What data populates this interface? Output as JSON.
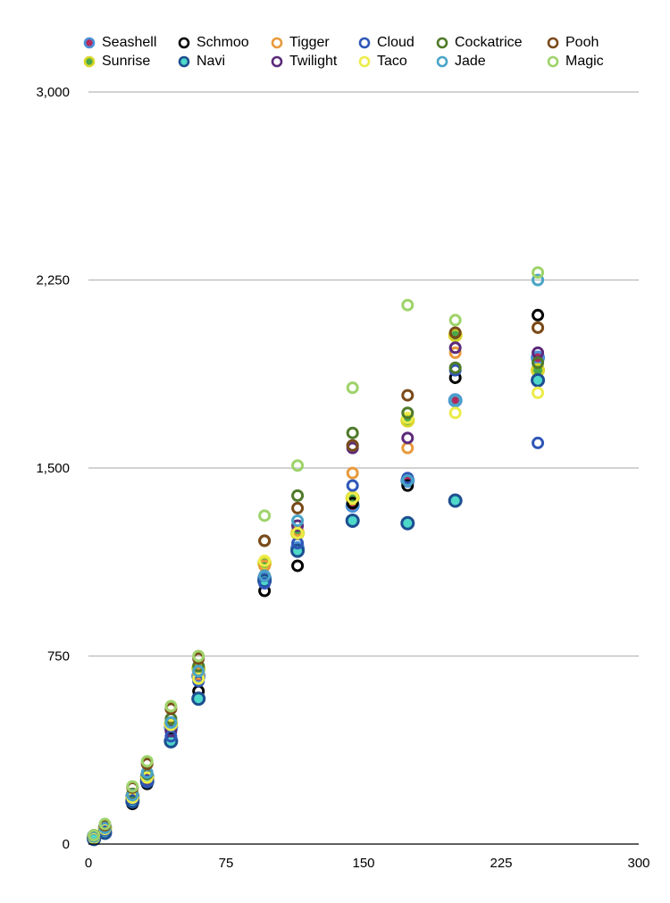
{
  "chart_data": {
    "type": "scatter",
    "title": "",
    "xlabel": "",
    "ylabel": "",
    "xlim": [
      0,
      300
    ],
    "ylim": [
      0,
      3000
    ],
    "x_ticks": [
      "0",
      "75",
      "150",
      "225",
      "300"
    ],
    "y_ticks": [
      "0",
      "750",
      "1,500",
      "2,250",
      "3,000"
    ],
    "grid": "horizontal",
    "legend_position": "top",
    "series": [
      {
        "name": "Seashell",
        "color": "#4a90d9",
        "fill": "#b22a5e",
        "filled": true,
        "points": [
          [
            3,
            30
          ],
          [
            9,
            65
          ],
          [
            24,
            190
          ],
          [
            32,
            270
          ],
          [
            45,
            465
          ],
          [
            60,
            670
          ],
          [
            96,
            1060
          ],
          [
            114,
            1180
          ],
          [
            144,
            1350
          ],
          [
            174,
            1450
          ],
          [
            200,
            1770
          ],
          [
            245,
            1940
          ]
        ]
      },
      {
        "name": "Sunrise",
        "color": "#d9d62a",
        "fill": "#4aa84a",
        "filled": true,
        "points": [
          [
            3,
            25
          ],
          [
            9,
            60
          ],
          [
            24,
            180
          ],
          [
            32,
            260
          ],
          [
            45,
            480
          ],
          [
            60,
            700
          ],
          [
            96,
            1120
          ],
          [
            114,
            1240
          ],
          [
            144,
            1380
          ],
          [
            174,
            1690
          ],
          [
            200,
            2030
          ],
          [
            245,
            1890
          ]
        ]
      },
      {
        "name": "Schmoo",
        "color": "#000000",
        "points": [
          [
            3,
            20
          ],
          [
            9,
            50
          ],
          [
            24,
            160
          ],
          [
            32,
            240
          ],
          [
            45,
            420
          ],
          [
            60,
            610
          ],
          [
            96,
            1010
          ],
          [
            114,
            1110
          ],
          [
            144,
            1360
          ],
          [
            174,
            1430
          ],
          [
            200,
            1860
          ],
          [
            245,
            2110
          ]
        ]
      },
      {
        "name": "Navi",
        "color": "#1d4f91",
        "fill": "#4ed8c9",
        "filled": true,
        "points": [
          [
            3,
            20
          ],
          [
            9,
            45
          ],
          [
            24,
            170
          ],
          [
            32,
            250
          ],
          [
            45,
            410
          ],
          [
            60,
            580
          ],
          [
            96,
            1050
          ],
          [
            114,
            1170
          ],
          [
            144,
            1290
          ],
          [
            174,
            1280
          ],
          [
            200,
            1370
          ],
          [
            245,
            1850
          ]
        ]
      },
      {
        "name": "Tigger",
        "color": "#e89a3c",
        "points": [
          [
            3,
            30
          ],
          [
            9,
            70
          ],
          [
            24,
            200
          ],
          [
            32,
            280
          ],
          [
            45,
            470
          ],
          [
            60,
            680
          ],
          [
            96,
            1110
          ],
          [
            114,
            1250
          ],
          [
            144,
            1480
          ],
          [
            174,
            1580
          ],
          [
            200,
            1960
          ],
          [
            245,
            2060
          ]
        ]
      },
      {
        "name": "Twilight",
        "color": "#5c2a7a",
        "points": [
          [
            3,
            25
          ],
          [
            9,
            60
          ],
          [
            24,
            190
          ],
          [
            32,
            260
          ],
          [
            45,
            450
          ],
          [
            60,
            660
          ],
          [
            96,
            1070
          ],
          [
            114,
            1270
          ],
          [
            144,
            1580
          ],
          [
            174,
            1620
          ],
          [
            200,
            1980
          ],
          [
            245,
            1960
          ]
        ]
      },
      {
        "name": "Cloud",
        "color": "#2f57b8",
        "points": [
          [
            3,
            25
          ],
          [
            9,
            55
          ],
          [
            24,
            180
          ],
          [
            32,
            250
          ],
          [
            45,
            430
          ],
          [
            60,
            650
          ],
          [
            96,
            1040
          ],
          [
            114,
            1200
          ],
          [
            144,
            1430
          ],
          [
            174,
            1460
          ],
          [
            200,
            1890
          ],
          [
            245,
            1600
          ]
        ]
      },
      {
        "name": "Taco",
        "color": "#ecec4a",
        "points": [
          [
            3,
            25
          ],
          [
            9,
            60
          ],
          [
            24,
            185
          ],
          [
            32,
            265
          ],
          [
            45,
            475
          ],
          [
            60,
            660
          ],
          [
            96,
            1130
          ],
          [
            114,
            1240
          ],
          [
            144,
            1380
          ],
          [
            174,
            1700
          ],
          [
            200,
            1720
          ],
          [
            245,
            1800
          ]
        ]
      },
      {
        "name": "Cockatrice",
        "color": "#4f7a2a",
        "points": [
          [
            3,
            30
          ],
          [
            9,
            65
          ],
          [
            24,
            200
          ],
          [
            32,
            280
          ],
          [
            45,
            500
          ],
          [
            60,
            710
          ],
          [
            96,
            1210
          ],
          [
            114,
            1390
          ],
          [
            144,
            1640
          ],
          [
            174,
            1720
          ],
          [
            200,
            1900
          ],
          [
            245,
            1920
          ]
        ]
      },
      {
        "name": "Jade",
        "color": "#4aa4c8",
        "points": [
          [
            3,
            30
          ],
          [
            9,
            65
          ],
          [
            24,
            195
          ],
          [
            32,
            285
          ],
          [
            45,
            485
          ],
          [
            60,
            690
          ],
          [
            96,
            1070
          ],
          [
            114,
            1290
          ],
          [
            144,
            1590
          ],
          [
            174,
            1450
          ],
          [
            200,
            1770
          ],
          [
            245,
            2250
          ]
        ]
      },
      {
        "name": "Pooh",
        "color": "#7a4a1a",
        "points": [
          [
            3,
            35
          ],
          [
            9,
            75
          ],
          [
            24,
            225
          ],
          [
            32,
            320
          ],
          [
            45,
            540
          ],
          [
            60,
            740
          ],
          [
            96,
            1210
          ],
          [
            114,
            1340
          ],
          [
            144,
            1590
          ],
          [
            174,
            1790
          ],
          [
            200,
            2040
          ],
          [
            245,
            2060
          ]
        ]
      },
      {
        "name": "Magic",
        "color": "#9ed36a",
        "points": [
          [
            3,
            35
          ],
          [
            9,
            80
          ],
          [
            24,
            230
          ],
          [
            32,
            330
          ],
          [
            45,
            550
          ],
          [
            60,
            750
          ],
          [
            96,
            1310
          ],
          [
            114,
            1510
          ],
          [
            144,
            1820
          ],
          [
            174,
            2150
          ],
          [
            200,
            2090
          ],
          [
            245,
            2280
          ]
        ]
      }
    ]
  }
}
